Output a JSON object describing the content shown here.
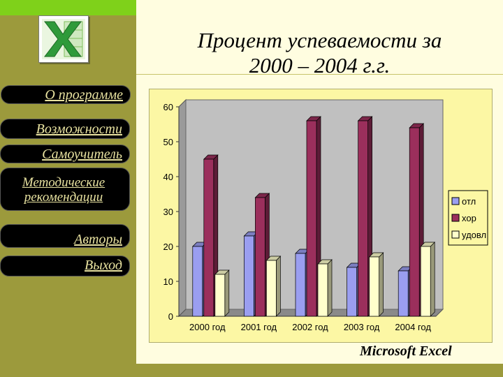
{
  "title_line1": "Процент успеваемости за",
  "title_line2": "2000 – 2004 г.г.",
  "brand": "Microsoft Excel",
  "logo_icon": "excel-logo-icon",
  "menu": [
    {
      "label": "О программе"
    },
    {
      "label": "Возможности"
    },
    {
      "label": "Самоучитель"
    },
    {
      "label": "Методические рекомендации"
    },
    {
      "label": "Авторы"
    },
    {
      "label": "Выход"
    }
  ],
  "colors": {
    "sidebar": "#9c9a3c",
    "accent": "#7fd11a",
    "chart_bg": "#fcf7a4",
    "plot_bg": "#c0c0c0"
  },
  "chart_data": {
    "type": "bar",
    "categories": [
      "2000 год",
      "2001 год",
      "2002 год",
      "2003 год",
      "2004 год"
    ],
    "series": [
      {
        "name": "отл",
        "values": [
          20,
          23,
          18,
          14,
          13
        ],
        "color": "#9a9ef0"
      },
      {
        "name": "хор",
        "values": [
          45,
          34,
          56,
          56,
          54
        ],
        "color": "#9b2f5c"
      },
      {
        "name": "удовл",
        "values": [
          12,
          16,
          15,
          17,
          20
        ],
        "color": "#ffffcc"
      }
    ],
    "ylim": [
      0,
      60
    ],
    "yticks": [
      "0",
      "10",
      "20",
      "30",
      "40",
      "50",
      "60"
    ],
    "legend": "right"
  }
}
